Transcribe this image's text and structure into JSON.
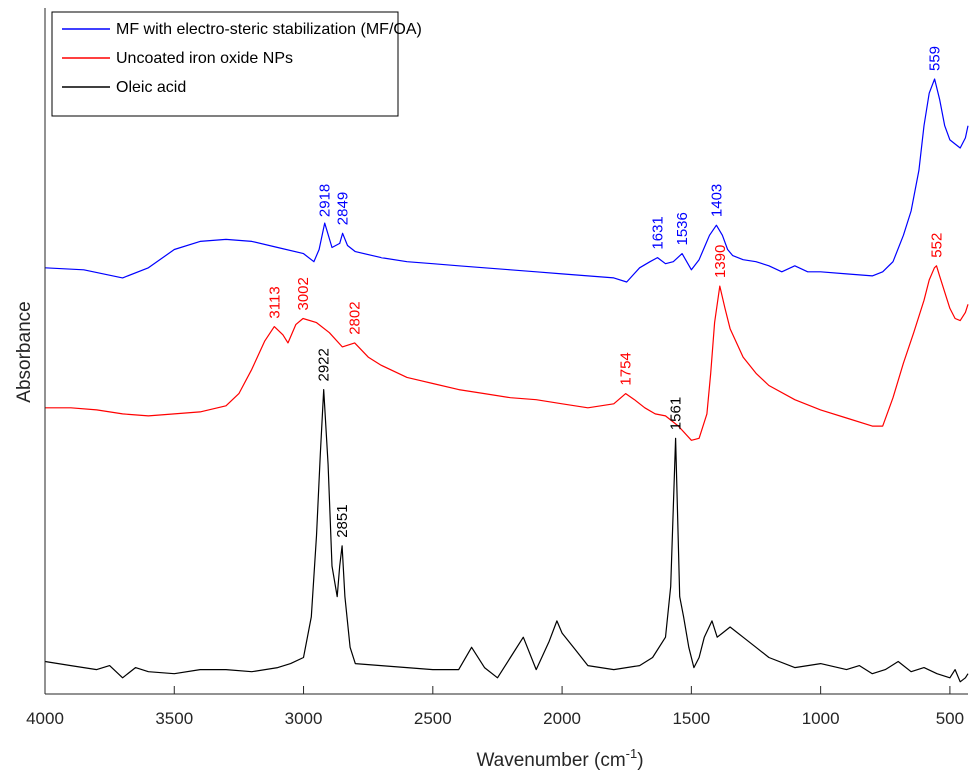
{
  "chart_data": {
    "type": "line",
    "title": "",
    "xlabel": "Wavenumber (cm",
    "xlabel_superscript": "-1",
    "xlabel_suffix": ")",
    "ylabel": "Absorbance",
    "xlim": [
      4000,
      430
    ],
    "x_reversed": true,
    "y_ticks_shown": false,
    "grid": false,
    "legend_position": "top-left",
    "x_ticks": [
      4000,
      3500,
      3000,
      2500,
      2000,
      1500,
      1000,
      500
    ],
    "series": [
      {
        "name": "MF with electro-steric stabilization (MF/OA)",
        "color": "#0000ff",
        "x": [
          4000,
          3850,
          3700,
          3600,
          3500,
          3400,
          3300,
          3200,
          3100,
          3000,
          2960,
          2940,
          2918,
          2890,
          2860,
          2849,
          2830,
          2800,
          2700,
          2600,
          2500,
          2400,
          2300,
          2200,
          2100,
          2000,
          1900,
          1800,
          1750,
          1700,
          1660,
          1631,
          1600,
          1570,
          1536,
          1500,
          1470,
          1450,
          1430,
          1403,
          1380,
          1360,
          1340,
          1300,
          1250,
          1200,
          1150,
          1100,
          1050,
          1000,
          900,
          800,
          760,
          720,
          680,
          650,
          620,
          600,
          580,
          559,
          540,
          520,
          500,
          480,
          460,
          440,
          430
        ],
        "y": [
          2.02,
          2.01,
          1.97,
          2.02,
          2.11,
          2.15,
          2.16,
          2.15,
          2.12,
          2.09,
          2.05,
          2.11,
          2.24,
          2.12,
          2.14,
          2.19,
          2.13,
          2.1,
          2.07,
          2.05,
          2.04,
          2.03,
          2.02,
          2.01,
          2.0,
          1.99,
          1.98,
          1.97,
          1.95,
          2.02,
          2.05,
          2.07,
          2.04,
          2.05,
          2.09,
          2.01,
          2.06,
          2.12,
          2.18,
          2.23,
          2.18,
          2.11,
          2.08,
          2.06,
          2.05,
          2.03,
          2.0,
          2.03,
          2.0,
          2.0,
          1.99,
          1.98,
          2.0,
          2.05,
          2.18,
          2.3,
          2.5,
          2.72,
          2.88,
          2.95,
          2.85,
          2.72,
          2.65,
          2.63,
          2.61,
          2.66,
          2.72
        ]
      },
      {
        "name": "Uncoated iron oxide NPs",
        "color": "#ff0000",
        "x": [
          4000,
          3900,
          3800,
          3700,
          3600,
          3500,
          3400,
          3300,
          3250,
          3200,
          3150,
          3113,
          3080,
          3060,
          3030,
          3002,
          2950,
          2900,
          2850,
          2802,
          2750,
          2700,
          2600,
          2500,
          2400,
          2300,
          2200,
          2100,
          2000,
          1900,
          1800,
          1754,
          1720,
          1680,
          1640,
          1600,
          1550,
          1500,
          1470,
          1440,
          1425,
          1410,
          1390,
          1370,
          1350,
          1300,
          1250,
          1200,
          1100,
          1000,
          900,
          800,
          760,
          720,
          680,
          640,
          600,
          580,
          560,
          552,
          540,
          520,
          500,
          480,
          460,
          440,
          430
        ],
        "y": [
          1.33,
          1.33,
          1.32,
          1.3,
          1.29,
          1.3,
          1.31,
          1.34,
          1.4,
          1.52,
          1.66,
          1.73,
          1.69,
          1.65,
          1.74,
          1.77,
          1.75,
          1.7,
          1.63,
          1.65,
          1.58,
          1.54,
          1.48,
          1.45,
          1.42,
          1.4,
          1.38,
          1.37,
          1.35,
          1.33,
          1.35,
          1.4,
          1.37,
          1.33,
          1.3,
          1.29,
          1.24,
          1.17,
          1.18,
          1.3,
          1.5,
          1.75,
          1.93,
          1.82,
          1.72,
          1.58,
          1.5,
          1.44,
          1.37,
          1.32,
          1.28,
          1.24,
          1.24,
          1.38,
          1.55,
          1.7,
          1.86,
          1.96,
          2.02,
          2.03,
          1.98,
          1.9,
          1.82,
          1.77,
          1.76,
          1.8,
          1.84
        ]
      },
      {
        "name": "Oleic acid",
        "color": "#000000",
        "x": [
          4000,
          3900,
          3800,
          3750,
          3700,
          3650,
          3600,
          3500,
          3400,
          3300,
          3200,
          3100,
          3050,
          3000,
          2970,
          2950,
          2935,
          2922,
          2905,
          2890,
          2870,
          2860,
          2851,
          2840,
          2820,
          2800,
          2700,
          2600,
          2500,
          2400,
          2350,
          2300,
          2250,
          2200,
          2150,
          2100,
          2050,
          2020,
          2000,
          1950,
          1900,
          1800,
          1700,
          1650,
          1600,
          1580,
          1561,
          1545,
          1530,
          1510,
          1490,
          1470,
          1450,
          1420,
          1400,
          1380,
          1350,
          1300,
          1250,
          1200,
          1100,
          1000,
          900,
          850,
          800,
          750,
          700,
          650,
          600,
          550,
          500,
          480,
          460,
          440,
          430
        ],
        "y": [
          0.08,
          0.06,
          0.04,
          0.06,
          0.0,
          0.05,
          0.03,
          0.02,
          0.04,
          0.04,
          0.03,
          0.05,
          0.07,
          0.1,
          0.3,
          0.7,
          1.1,
          1.42,
          1.05,
          0.55,
          0.4,
          0.55,
          0.65,
          0.4,
          0.15,
          0.07,
          0.06,
          0.05,
          0.04,
          0.04,
          0.15,
          0.05,
          0.0,
          0.1,
          0.2,
          0.04,
          0.18,
          0.28,
          0.22,
          0.14,
          0.06,
          0.04,
          0.06,
          0.1,
          0.2,
          0.45,
          1.18,
          0.4,
          0.3,
          0.15,
          0.05,
          0.1,
          0.2,
          0.28,
          0.2,
          0.22,
          0.25,
          0.2,
          0.15,
          0.1,
          0.05,
          0.07,
          0.04,
          0.06,
          0.02,
          0.04,
          0.08,
          0.03,
          0.05,
          0.02,
          0.0,
          0.04,
          -0.02,
          0.0,
          0.02
        ]
      }
    ],
    "annotations": [
      {
        "text": "2918",
        "x": 2918,
        "y": 2.25,
        "color": "#0000ff"
      },
      {
        "text": "2849",
        "x": 2849,
        "y": 2.21,
        "color": "#0000ff"
      },
      {
        "text": "1631",
        "x": 1631,
        "y": 2.09,
        "color": "#0000ff"
      },
      {
        "text": "1536",
        "x": 1536,
        "y": 2.11,
        "color": "#0000ff"
      },
      {
        "text": "1403",
        "x": 1403,
        "y": 2.25,
        "color": "#0000ff"
      },
      {
        "text": "559",
        "x": 559,
        "y": 2.97,
        "color": "#0000ff"
      },
      {
        "text": "3113",
        "x": 3113,
        "y": 1.75,
        "color": "#ff0000"
      },
      {
        "text": "3002",
        "x": 3002,
        "y": 1.79,
        "color": "#ff0000"
      },
      {
        "text": "2802",
        "x": 2802,
        "y": 1.67,
        "color": "#ff0000"
      },
      {
        "text": "1754",
        "x": 1754,
        "y": 1.42,
        "color": "#ff0000"
      },
      {
        "text": "1390",
        "x": 1390,
        "y": 1.95,
        "color": "#ff0000"
      },
      {
        "text": "552",
        "x": 552,
        "y": 2.05,
        "color": "#ff0000"
      },
      {
        "text": "2922",
        "x": 2922,
        "y": 1.44,
        "color": "#000000"
      },
      {
        "text": "2851",
        "x": 2851,
        "y": 0.67,
        "color": "#000000"
      },
      {
        "text": "1561",
        "x": 1561,
        "y": 1.2,
        "color": "#000000"
      }
    ]
  }
}
